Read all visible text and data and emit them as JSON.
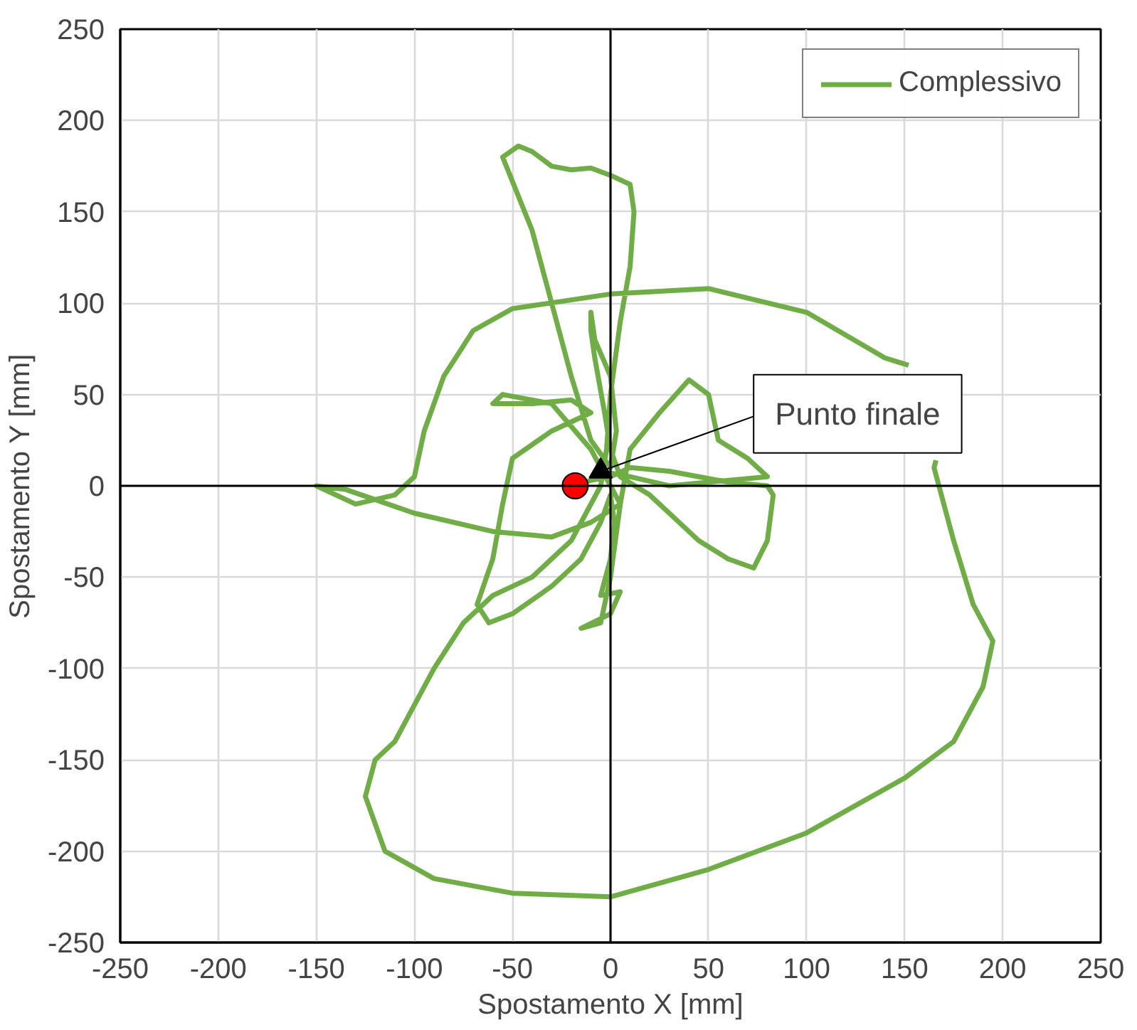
{
  "chart_data": {
    "type": "line",
    "xlabel": "Spostamento X [mm]",
    "ylabel": "Spostamento Y [mm]",
    "xlim": [
      -250,
      250
    ],
    "ylim": [
      -250,
      250
    ],
    "xticks": [
      -250,
      -200,
      -150,
      -100,
      -50,
      0,
      50,
      100,
      150,
      200,
      250
    ],
    "yticks": [
      -250,
      -200,
      -150,
      -100,
      -50,
      0,
      50,
      100,
      150,
      200,
      250
    ],
    "grid": true,
    "legend": "top right",
    "line_style": "solid",
    "annotations": [
      {
        "text": "Punto finale",
        "x": -5,
        "y": 8
      }
    ],
    "series": [
      {
        "name": "Complessivo",
        "color": "#70ad47",
        "marker": "none",
        "x": [
          -18,
          -10,
          0,
          10,
          30,
          60,
          80,
          83,
          80,
          73,
          60,
          45,
          30,
          20,
          5,
          0,
          -3,
          -8,
          -10,
          -10,
          -8,
          0,
          3,
          0,
          -10,
          -20,
          -30,
          -40,
          -55,
          -47,
          -40,
          -30,
          -20,
          -10,
          0,
          10,
          12,
          10,
          5,
          0,
          -2,
          -5,
          -20,
          -40,
          -60,
          -75,
          -90,
          -100,
          -110,
          -120,
          -125,
          -115,
          -90,
          -50,
          0,
          50,
          100,
          150,
          175,
          190,
          195,
          185,
          175,
          165,
          166,
          162,
          152,
          140,
          100,
          50,
          0,
          -50,
          -70,
          -85,
          -95,
          -100,
          -110,
          -130,
          -150,
          -135,
          -100,
          -60,
          -30,
          -10,
          5,
          -10,
          -30,
          -55,
          -60,
          -40,
          -20,
          -10,
          -30,
          -50,
          -55,
          -60,
          -68,
          -62,
          -50,
          -30,
          -15,
          -5,
          0,
          2,
          0,
          -5,
          5,
          0,
          -15,
          -5,
          0,
          5,
          10,
          25,
          40,
          50,
          55,
          70,
          80,
          30,
          10,
          -5
        ],
        "values": [
          0,
          3,
          5,
          10,
          8,
          2,
          0,
          -5,
          -30,
          -45,
          -40,
          -30,
          -15,
          -5,
          5,
          20,
          40,
          70,
          85,
          95,
          80,
          60,
          30,
          10,
          25,
          60,
          100,
          140,
          180,
          186,
          183,
          175,
          173,
          174,
          170,
          165,
          150,
          120,
          90,
          50,
          20,
          0,
          -30,
          -50,
          -60,
          -75,
          -100,
          -120,
          -140,
          -150,
          -170,
          -200,
          -215,
          -223,
          -225,
          -210,
          -190,
          -160,
          -140,
          -110,
          -85,
          -65,
          -30,
          10,
          14,
          null,
          66,
          70,
          95,
          108,
          105,
          97,
          85,
          60,
          30,
          5,
          -5,
          -10,
          0,
          -2,
          -15,
          -25,
          -28,
          -20,
          -10,
          20,
          45,
          50,
          45,
          45,
          47,
          40,
          30,
          15,
          -10,
          -40,
          -65,
          -75,
          -70,
          -55,
          -40,
          -20,
          -5,
          -20,
          -40,
          -60,
          -58,
          -70,
          -78,
          -75,
          -50,
          -10,
          20,
          40,
          58,
          50,
          25,
          15,
          5,
          0,
          5,
          8
        ]
      },
      {
        "type": "scatter",
        "color": "#ff0000",
        "marker": "circle",
        "x": [
          -18
        ],
        "values": [
          0
        ]
      },
      {
        "type": "scatter",
        "color": "#000000",
        "marker": "triangle",
        "x": [
          -5
        ],
        "values": [
          8
        ]
      }
    ]
  }
}
